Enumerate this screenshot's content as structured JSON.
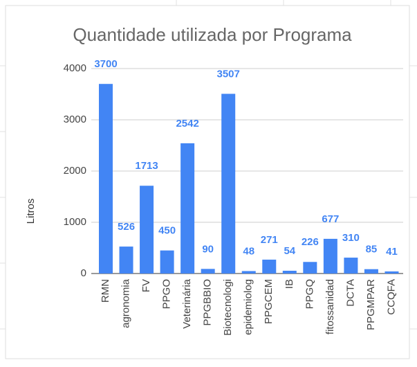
{
  "chart_data": {
    "type": "bar",
    "title": "Quantidade utilizada por Programa",
    "y_label": "Litros",
    "categories": [
      "RMN",
      "agronomia",
      "FV",
      "PPGO",
      "Veterinária",
      "PPGBBIO",
      "Biotecnologi",
      "epidemiolog",
      "PPGCEM",
      "IB",
      "PPGQ",
      "fitossanidad",
      "DCTA",
      "PPGMPAR",
      "CCQFA"
    ],
    "values": [
      3700,
      526,
      1713,
      450,
      2542,
      90,
      3507,
      48,
      271,
      54,
      226,
      677,
      310,
      85,
      41
    ],
    "color": "#4285f4",
    "ylim": [
      0,
      4000
    ],
    "yticks": [
      0,
      1000,
      2000,
      3000,
      4000
    ],
    "grid": true
  }
}
